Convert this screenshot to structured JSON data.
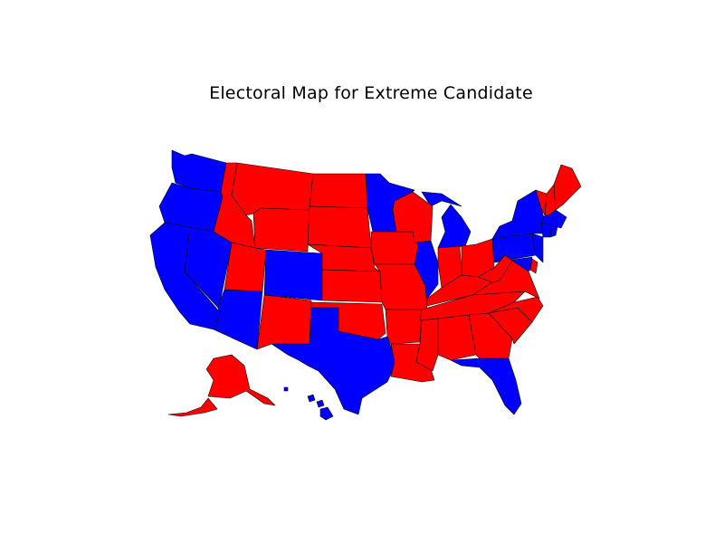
{
  "figure": {
    "title": "Electoral Map for Extreme Candidate"
  },
  "colors": {
    "red": "#ff0000",
    "blue": "#0000ff",
    "border": "#000000",
    "background": "#ffffff"
  },
  "map_data": {
    "type": "choropleth",
    "region": "United States",
    "states": {
      "WA": "blue",
      "OR": "blue",
      "CA": "blue",
      "NV": "blue",
      "AZ": "blue",
      "CO": "blue",
      "TX": "blue",
      "IL": "blue",
      "MI": "blue",
      "FL": "blue",
      "NY": "blue",
      "PA": "blue",
      "NJ": "blue",
      "MD": "blue",
      "CT": "blue",
      "RI": "blue",
      "MA": "blue",
      "HI": "blue",
      "MN": "blue",
      "ID": "red",
      "MT": "red",
      "WY": "red",
      "UT": "red",
      "NM": "red",
      "ND": "red",
      "SD": "red",
      "NE": "red",
      "KS": "red",
      "OK": "red",
      "IA": "red",
      "MO": "red",
      "AR": "red",
      "LA": "red",
      "WI": "red",
      "IN": "red",
      "OH": "red",
      "KY": "red",
      "TN": "red",
      "MS": "red",
      "AL": "red",
      "GA": "red",
      "SC": "red",
      "NC": "red",
      "VA": "red",
      "WV": "red",
      "DE": "red",
      "VT": "red",
      "NH": "red",
      "ME": "red",
      "AK": "red"
    }
  }
}
